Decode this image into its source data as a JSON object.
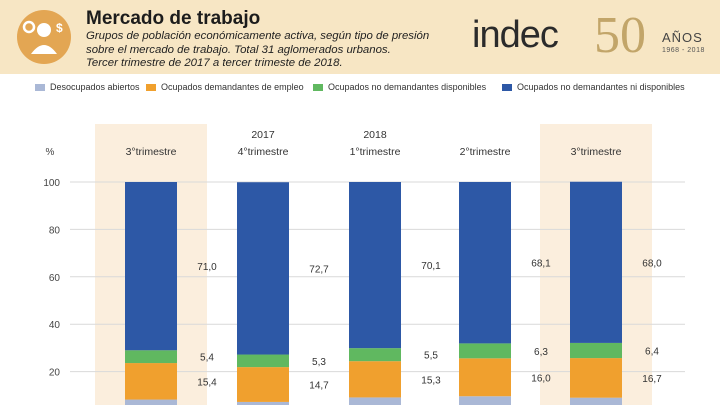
{
  "header": {
    "title": "Mercado de trabajo",
    "subtitle": "Grupos de población económicamente activa, según tipo de presión\nsobre el mercado de trabajo. Total 31 aglomerados urbanos.\nTercer trimestre de 2017 a tercer trimeste de 2018.",
    "brand": "indec",
    "anniversary_number": "50",
    "anniversary_word": "AÑOS",
    "anniversary_years": "1968 - 2018",
    "icon": "worker-dollar-gear-icon"
  },
  "chart_data": {
    "type": "bar",
    "stacked": true,
    "ylabel": "%",
    "ylim": [
      0,
      100
    ],
    "yticks": [
      20,
      40,
      60,
      80,
      100
    ],
    "grid": true,
    "legend_position": "top",
    "year_labels": [
      "",
      "2017",
      "2018",
      "",
      ""
    ],
    "categories": [
      "3°trimestre",
      "4°trimestre",
      "1°trimestre",
      "2°trimestre",
      "3°trimestre"
    ],
    "highlighted": [
      true,
      false,
      false,
      false,
      true
    ],
    "highlight_color": "#fbeedd",
    "series": [
      {
        "name": "Desocupados abiertos",
        "color": "#aab8d6",
        "values": [
          8.2,
          7.2,
          9.1,
          9.6,
          9.0
        ]
      },
      {
        "name": "Ocupados demandantes de empleo",
        "color": "#f0a02e",
        "values": [
          15.4,
          14.7,
          15.3,
          16.0,
          16.7
        ]
      },
      {
        "name": "Ocupados no demandantes disponibles",
        "color": "#60b860",
        "values": [
          5.4,
          5.3,
          5.5,
          6.3,
          6.4
        ]
      },
      {
        "name": "Ocupados no demandantes ni disponibles",
        "color": "#2d58a6",
        "values": [
          71.0,
          72.7,
          70.1,
          68.1,
          68.0
        ]
      }
    ],
    "value_labels": [
      [
        "",
        "15,4",
        "5,4",
        "71,0"
      ],
      [
        "",
        "14,7",
        "5,3",
        "72,7"
      ],
      [
        "",
        "15,3",
        "5,5",
        "70,1"
      ],
      [
        "",
        "16,0",
        "6,3",
        "68,1"
      ],
      [
        "",
        "16,7",
        "6,4",
        "68,0"
      ]
    ]
  }
}
